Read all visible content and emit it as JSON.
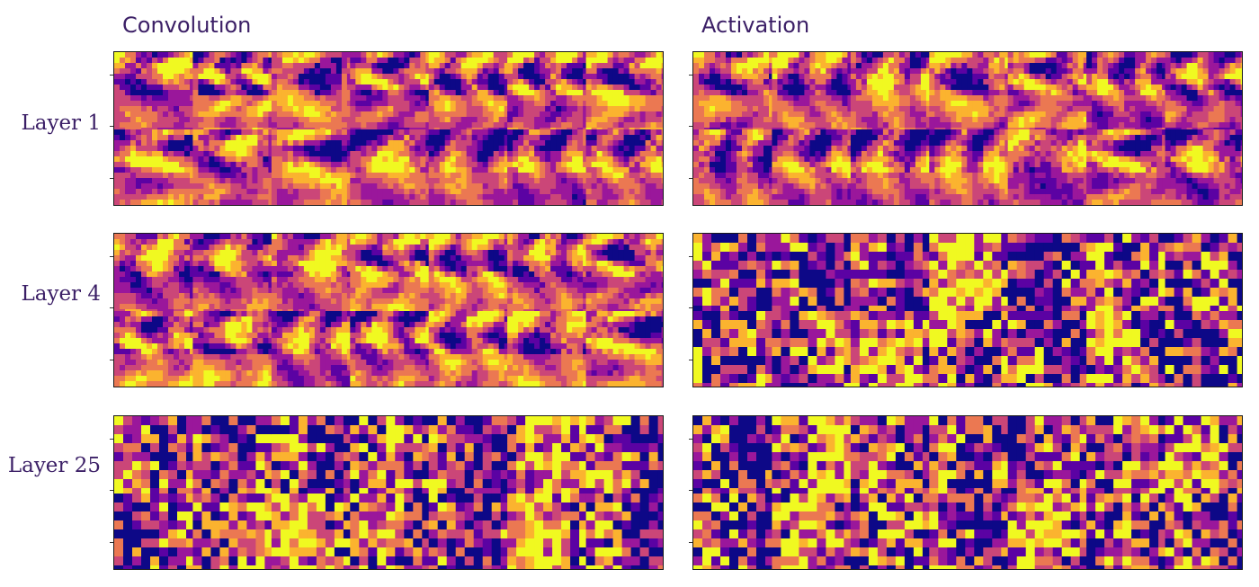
{
  "columns": {
    "convolution": "Convolution",
    "activation": "Activation"
  },
  "rows": [
    {
      "label": "Layer 1"
    },
    {
      "label": "Layer 4"
    },
    {
      "label": "Layer 25"
    }
  ],
  "colormap": [
    "#0d0887",
    "#5b02a3",
    "#9a179b",
    "#cb4678",
    "#eb7852",
    "#fbb32f",
    "#f0f921"
  ]
}
